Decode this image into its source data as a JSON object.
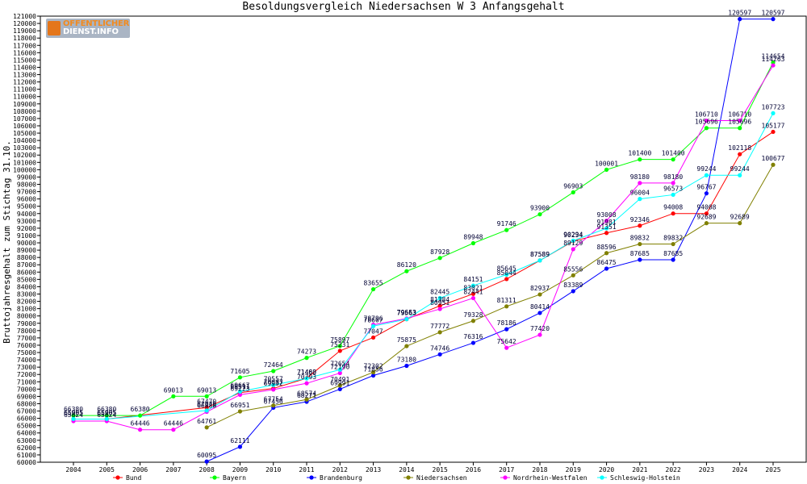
{
  "logo": {
    "line1": "OFFENTLICHER",
    "line2": "DIENST.INFO"
  },
  "chart_data": {
    "type": "line",
    "title": "Besoldungsvergleich Niedersachsen W 3 Anfangsgehalt",
    "ylabel": "Bruttojahresgehalt zum Stichtag 31.10.",
    "xlabel": "",
    "ylim": [
      60000,
      121000
    ],
    "ystep": 1000,
    "x": [
      "2004",
      "2005",
      "2006",
      "2007",
      "2008",
      "2009",
      "2010",
      "2011",
      "2012",
      "2013",
      "2014",
      "2015",
      "2016",
      "2017",
      "2018",
      "2019",
      "2020",
      "2021",
      "2022",
      "2023",
      "2024",
      "2025"
    ],
    "legend_position": "bottom",
    "grid": false,
    "series": [
      {
        "name": "Bund",
        "color": "#ff0000",
        "values": [
          65905,
          65905,
          null,
          null,
          67470,
          69511,
          70087,
          71483,
          75231,
          77047,
          79563,
          81384,
          83021,
          85044,
          87589,
          90234,
          91351,
          92346,
          94008,
          94008,
          102118,
          105177
        ]
      },
      {
        "name": "Bayern",
        "color": "#00ff00",
        "values": [
          66380,
          66380,
          66380,
          69013,
          69013,
          71605,
          72464,
          74273,
          75897,
          83655,
          86120,
          87928,
          89948,
          91746,
          93900,
          96903,
          100001,
          101400,
          101400,
          105696,
          105696,
          114654
        ]
      },
      {
        "name": "Brandenburg",
        "color": "#0000ff",
        "values": [
          null,
          null,
          null,
          null,
          60095,
          62111,
          67456,
          68271,
          69991,
          71856,
          73180,
          74746,
          76316,
          78186,
          80414,
          83389,
          86475,
          87685,
          87685,
          96767,
          120597,
          120597
        ]
      },
      {
        "name": "Niedersachsen",
        "color": "#808000",
        "values": [
          null,
          null,
          null,
          null,
          64761,
          66951,
          67754,
          68574,
          70491,
          72302,
          75875,
          77772,
          79328,
          81311,
          82937,
          85556,
          88596,
          89832,
          89832,
          92689,
          92689,
          100677
        ]
      },
      {
        "name": "Nordrhein-Westfalen",
        "color": "#ff00ff",
        "values": [
          65624,
          65624,
          64446,
          64446,
          66888,
          69223,
          69932,
          70793,
          72190,
          78796,
          79653,
          80951,
          82441,
          75642,
          77420,
          89129,
          93008,
          98180,
          98180,
          106710,
          106710,
          114263
        ]
      },
      {
        "name": "Schleswig-Holstein",
        "color": "#00ffff",
        "values": [
          65905,
          65905,
          null,
          null,
          67070,
          69667,
          70557,
          71460,
          72654,
          78607,
          79563,
          82445,
          84151,
          85645,
          87589,
          90294,
          91981,
          96004,
          96573,
          99244,
          99244,
          107723
        ]
      }
    ]
  }
}
